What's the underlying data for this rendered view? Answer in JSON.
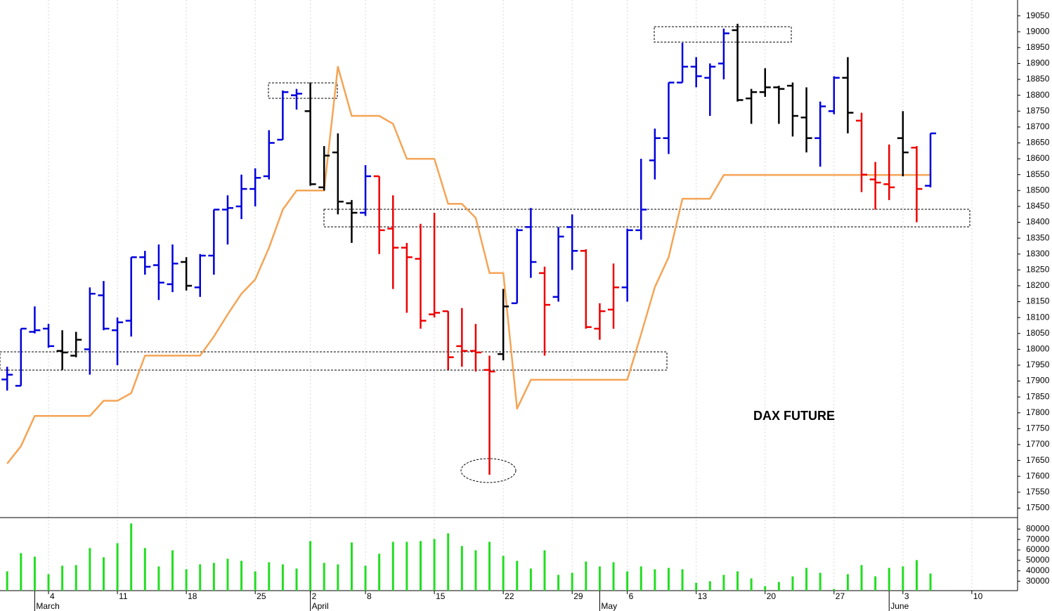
{
  "chart_data": [
    {
      "type": "ohlc",
      "annotation": "DAX FUTURE",
      "categories": [
        null,
        null,
        null,
        "4",
        null,
        null,
        null,
        null,
        "11",
        null,
        null,
        null,
        null,
        "18",
        null,
        null,
        null,
        null,
        "25",
        null,
        null,
        null,
        "2",
        null,
        null,
        null,
        "8",
        null,
        null,
        null,
        null,
        "15",
        null,
        null,
        null,
        null,
        "22",
        null,
        null,
        null,
        null,
        "29",
        null,
        null,
        null,
        "6",
        null,
        null,
        null,
        null,
        "13",
        null,
        null,
        null,
        null,
        "20",
        null,
        null,
        null,
        null,
        "27",
        null,
        null,
        null,
        null,
        "3",
        null,
        null,
        null,
        null,
        "10",
        null,
        null,
        null
      ],
      "months": [
        null,
        null,
        "March",
        null,
        null,
        null,
        null,
        null,
        null,
        null,
        null,
        null,
        null,
        null,
        null,
        null,
        null,
        null,
        null,
        null,
        null,
        null,
        "April",
        null,
        null,
        null,
        null,
        null,
        null,
        null,
        null,
        null,
        null,
        null,
        null,
        null,
        null,
        null,
        null,
        null,
        null,
        null,
        null,
        "May",
        null,
        null,
        null,
        null,
        null,
        null,
        null,
        null,
        null,
        null,
        null,
        null,
        null,
        null,
        null,
        null,
        null,
        null,
        null,
        null,
        "June",
        null,
        null,
        null,
        null,
        null,
        null,
        null,
        null
      ],
      "open": [
        17905,
        17885,
        18055,
        18065,
        17995,
        17980,
        18000,
        18170,
        18060,
        18090,
        18290,
        18265,
        18205,
        18275,
        18195,
        18295,
        18440,
        18450,
        18505,
        18545,
        18660,
        18800,
        18750,
        18510,
        18620,
        18460,
        18430,
        18545,
        18380,
        18320,
        18285,
        18110,
        18120,
        18010,
        17995,
        17935,
        17985,
        18145,
        18385,
        18240,
        18165,
        18385,
        18310,
        18065,
        18125,
        18195,
        18375,
        18595,
        18665,
        18840,
        18890,
        18855,
        18900,
        19005,
        18790,
        18810,
        18825,
        18830,
        18730,
        18665,
        18750,
        18855,
        18720,
        18535,
        18520,
        18665,
        18635,
        18515,
        null,
        null,
        null,
        null,
        null,
        null
      ],
      "high": [
        17945,
        18065,
        18135,
        18080,
        18060,
        18055,
        18195,
        18215,
        18100,
        18290,
        18310,
        18330,
        18330,
        18290,
        18300,
        18440,
        18485,
        18550,
        18570,
        18690,
        18815,
        18820,
        18840,
        18640,
        18680,
        18470,
        18580,
        18545,
        18485,
        18335,
        18395,
        18430,
        18120,
        18130,
        18080,
        17980,
        18190,
        18380,
        18445,
        18260,
        18385,
        18425,
        18315,
        18145,
        18270,
        18380,
        18600,
        18695,
        18840,
        18965,
        18920,
        18900,
        19010,
        19025,
        18820,
        18885,
        18830,
        18840,
        18825,
        18780,
        18860,
        18920,
        18745,
        18590,
        18645,
        18750,
        18640,
        18680,
        null,
        null,
        null,
        null,
        null,
        null
      ],
      "low": [
        17870,
        17885,
        18050,
        18005,
        17935,
        17975,
        17920,
        18060,
        17950,
        18040,
        18235,
        18155,
        18180,
        18185,
        18165,
        18235,
        18330,
        18410,
        18450,
        18535,
        18660,
        18755,
        18515,
        18500,
        18425,
        18335,
        18420,
        18300,
        18190,
        18115,
        18065,
        18100,
        17935,
        17945,
        17930,
        17605,
        17965,
        18145,
        18225,
        17980,
        18150,
        18250,
        18065,
        18030,
        18065,
        18150,
        18345,
        18535,
        18615,
        18840,
        18825,
        18735,
        18850,
        18780,
        18710,
        18795,
        18710,
        18670,
        18620,
        18575,
        18740,
        18680,
        18495,
        18440,
        18470,
        18545,
        18400,
        18510,
        null,
        null,
        null,
        null,
        null,
        null
      ],
      "close": [
        17920,
        18065,
        18060,
        18010,
        17990,
        18030,
        18175,
        18065,
        18085,
        18290,
        18260,
        18210,
        18270,
        18200,
        18295,
        18440,
        18445,
        18505,
        18540,
        18650,
        18810,
        18805,
        18520,
        18610,
        18465,
        18430,
        18545,
        18375,
        18320,
        18290,
        18090,
        18115,
        17975,
        17995,
        17990,
        17930,
        18135,
        18375,
        18275,
        18140,
        18355,
        18310,
        18070,
        18120,
        18195,
        18375,
        18440,
        18665,
        18840,
        18890,
        18860,
        18890,
        18995,
        18785,
        18810,
        18825,
        18820,
        18735,
        18665,
        18765,
        18855,
        18745,
        18550,
        18525,
        18510,
        18620,
        18505,
        18680,
        null,
        null,
        null,
        null,
        null,
        null
      ],
      "bar_colors": [
        "#0000dd",
        "#0000dd",
        "#0000dd",
        "#0000dd",
        "#000000",
        "#000000",
        "#0000dd",
        "#0000dd",
        "#0000dd",
        "#0000dd",
        "#0000dd",
        "#0000dd",
        "#0000dd",
        "#000000",
        "#0000dd",
        "#0000dd",
        "#0000dd",
        "#0000dd",
        "#0000dd",
        "#0000dd",
        "#0000dd",
        "#0000dd",
        "#000000",
        "#000000",
        "#000000",
        "#000000",
        "#0000dd",
        "#ee0000",
        "#ee0000",
        "#ee0000",
        "#ee0000",
        "#ee0000",
        "#ee0000",
        "#ee0000",
        "#ee0000",
        "#ee0000",
        "#000000",
        "#0000dd",
        "#0000dd",
        "#ee0000",
        "#0000dd",
        "#0000dd",
        "#ee0000",
        "#ee0000",
        "#ee0000",
        "#0000dd",
        "#0000dd",
        "#0000dd",
        "#0000dd",
        "#0000dd",
        "#0000dd",
        "#0000dd",
        "#0000dd",
        "#000000",
        "#000000",
        "#000000",
        "#000000",
        "#000000",
        "#000000",
        "#0000dd",
        "#0000dd",
        "#000000",
        "#ee0000",
        "#ee0000",
        "#ee0000",
        "#000000",
        "#ee0000",
        "#0000dd",
        null,
        null,
        null,
        null,
        null,
        null
      ],
      "line": {
        "color": "#f5a455",
        "values": [
          17640,
          17695,
          17790,
          17790,
          17790,
          17790,
          17790,
          17838,
          17838,
          17862,
          17980,
          17980,
          17980,
          17980,
          17980,
          18040,
          18110,
          18175,
          18220,
          18320,
          18440,
          18500,
          18500,
          18500,
          18890,
          18735,
          18735,
          18735,
          18710,
          18600,
          18600,
          18600,
          18458,
          18458,
          18414,
          18240,
          18240,
          17813,
          17904,
          17904,
          17904,
          17904,
          17904,
          17904,
          17904,
          17904,
          18048,
          18196,
          18290,
          18474,
          18474,
          18474,
          18549,
          18549,
          18549,
          18549,
          18549,
          18549,
          18549,
          18549,
          18549,
          18549,
          18549,
          18549,
          18549,
          18549,
          18549,
          18549,
          null,
          null,
          null,
          null,
          null,
          null
        ]
      },
      "ylim": [
        17470,
        19100
      ],
      "yticks": [
        17500,
        17550,
        17600,
        17650,
        17700,
        17750,
        17800,
        17850,
        17900,
        17950,
        18000,
        18050,
        18100,
        18150,
        18200,
        18250,
        18300,
        18350,
        18400,
        18450,
        18500,
        18550,
        18600,
        18650,
        18700,
        18750,
        18800,
        18850,
        18900,
        18950,
        19000,
        19050
      ],
      "grid": true
    },
    {
      "type": "bar",
      "color": "#22dd22",
      "values": [
        39500,
        57000,
        53600,
        36800,
        44900,
        45500,
        61800,
        53000,
        66500,
        85400,
        61800,
        44200,
        59700,
        41500,
        46200,
        47600,
        51600,
        49600,
        39500,
        48200,
        46200,
        42200,
        68500,
        47600,
        46200,
        67200,
        44900,
        56400,
        67800,
        67800,
        68500,
        70500,
        75900,
        63800,
        59700,
        67800,
        54300,
        49600,
        42200,
        59700,
        36100,
        38100,
        48900,
        44200,
        48200,
        39500,
        44200,
        41500,
        42800,
        41500,
        28600,
        30000,
        36100,
        39500,
        32700,
        25300,
        29300,
        34700,
        42800,
        38100,
        22600,
        36800,
        45500,
        34700,
        42800,
        44200,
        50300,
        37400,
        null,
        null,
        null,
        null,
        null,
        null
      ],
      "ylim": [
        21000,
        91000
      ],
      "yticks": [
        30000,
        40000,
        50000,
        60000,
        70000,
        80000
      ]
    }
  ]
}
